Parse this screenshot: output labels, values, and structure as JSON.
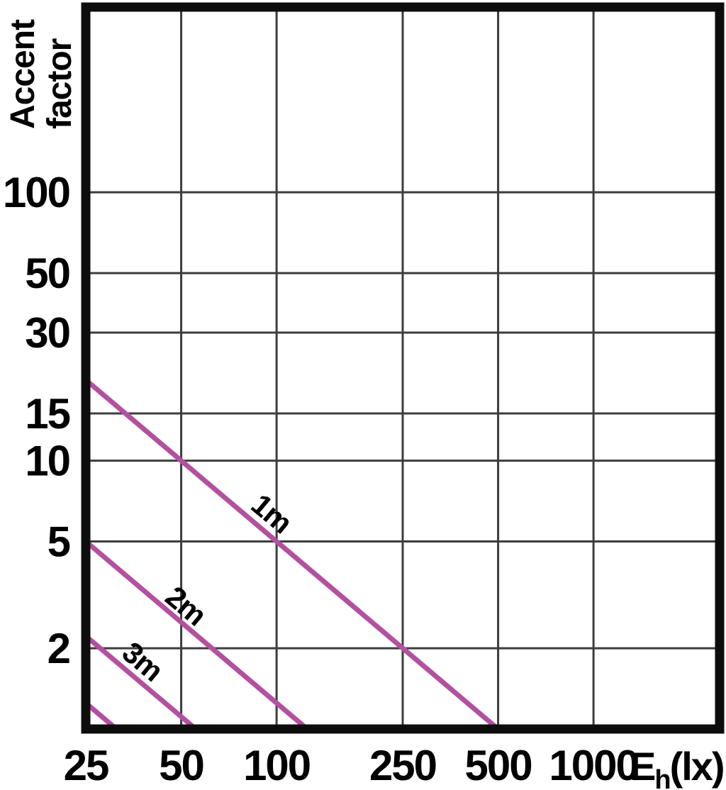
{
  "figure": {
    "background": "#ffffff"
  },
  "chart_data": {
    "type": "line",
    "title": "",
    "ylabel": "Accent factor",
    "ylabel_lines": [
      "Accent",
      "factor"
    ],
    "xlabel_unit": {
      "prefix": "E",
      "subscript": "h",
      "suffix": "(lx)"
    },
    "x_axis": {
      "scale": "log",
      "min": 25,
      "max": 2500,
      "tick_labels": [
        "25",
        "50",
        "100",
        "250",
        "500",
        "1000"
      ],
      "tick_values": [
        25,
        50,
        100,
        250,
        500,
        1000
      ],
      "gridline_values": [
        50,
        100,
        250,
        500,
        1000
      ]
    },
    "y_axis": {
      "scale": "log",
      "min": 1,
      "max": 490,
      "tick_labels": [
        "100",
        "50",
        "30",
        "15",
        "10",
        "5",
        "2"
      ],
      "tick_values": [
        100,
        50,
        30,
        15,
        10,
        5,
        2
      ],
      "gridline_values": [
        100,
        50,
        30,
        15,
        10,
        5,
        2
      ]
    },
    "grid": "on",
    "legend": "none",
    "series": [
      {
        "name": "distance-1m",
        "label": "1m",
        "points": [
          [
            25,
            20
          ],
          [
            500,
            1
          ]
        ],
        "label_at": [
          97,
          6.4
        ],
        "label_rotation": 40
      },
      {
        "name": "distance-2m",
        "label": "2m",
        "points": [
          [
            25,
            5
          ],
          [
            125,
            1
          ]
        ],
        "label_at": [
          52,
          2.9
        ],
        "label_rotation": 40
      },
      {
        "name": "distance-3m",
        "label": "3m",
        "points": [
          [
            25,
            2.22
          ],
          [
            55.6,
            1
          ]
        ],
        "label_at": [
          38,
          1.8
        ],
        "label_rotation": 40
      },
      {
        "name": "distance-4m-unlabeled",
        "label": "",
        "points": [
          [
            25,
            1.25
          ],
          [
            31.25,
            1
          ]
        ],
        "label_at": null,
        "label_rotation": 40
      }
    ],
    "colors": {
      "series_line": "#b3509f",
      "gridline": "#3d3d3d",
      "plot_border": "#0d0d0d",
      "text": "#000000",
      "background": "#ffffff"
    }
  }
}
